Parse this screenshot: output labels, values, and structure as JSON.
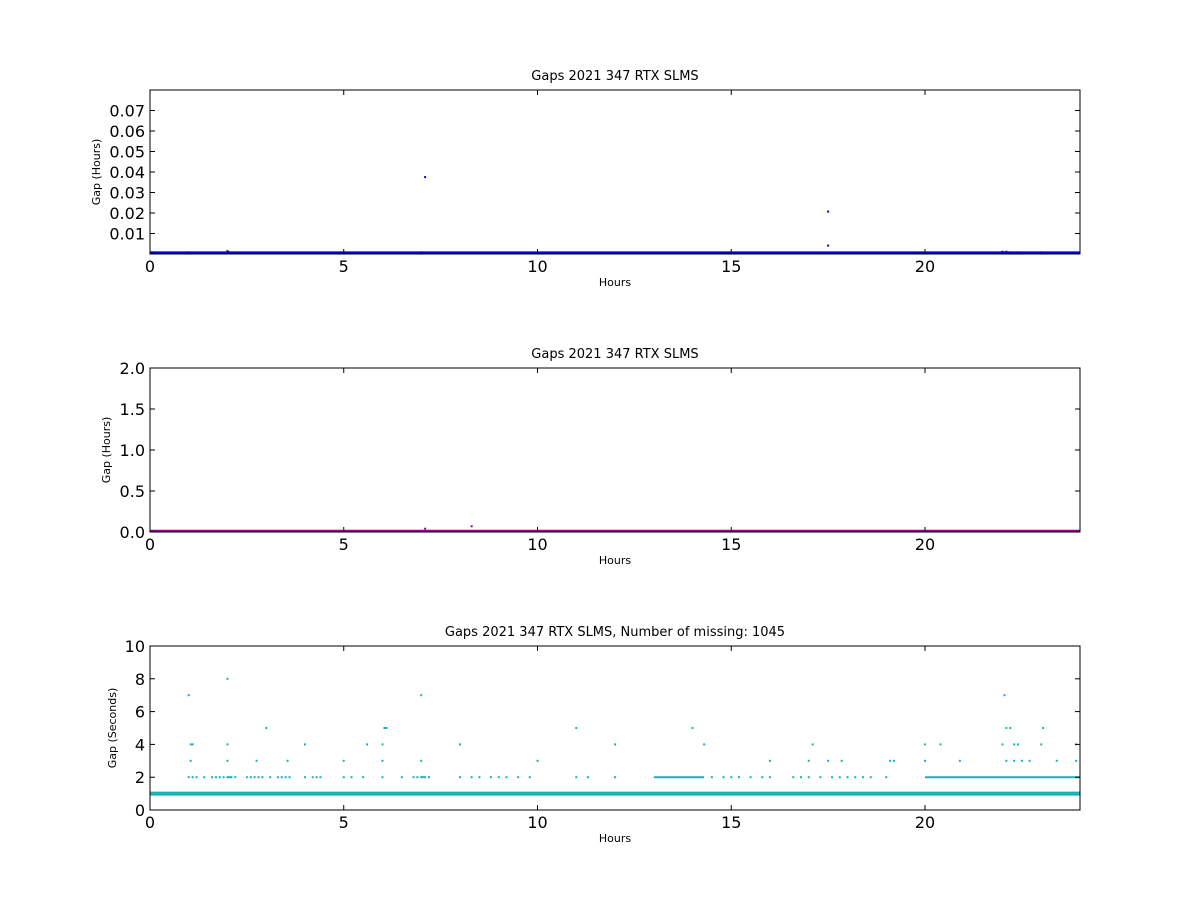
{
  "chart_data": [
    {
      "type": "scatter",
      "title": "Gaps 2021 347 RTX  SLMS",
      "xlabel": "Hours",
      "ylabel": "Gap (Hours)",
      "xlim": [
        0,
        24
      ],
      "ylim": [
        0,
        0.08
      ],
      "xticks": [
        "0",
        "5",
        "10",
        "15",
        "20"
      ],
      "xtick_values": [
        0,
        5,
        10,
        15,
        20
      ],
      "yticks": [
        "0.01",
        "0.02",
        "0.03",
        "0.04",
        "0.05",
        "0.06",
        "0.07"
      ],
      "ytick_values": [
        0.01,
        0.02,
        0.03,
        0.04,
        0.05,
        0.06,
        0.07
      ],
      "color": "#0000cc",
      "baseline": {
        "y": 0.0003,
        "x_start": 0,
        "x_end": 24
      },
      "series": [
        {
          "x": [
            0.05,
            0.1,
            1.0,
            1.05,
            1.1,
            2.0,
            2.05,
            3.0,
            4.0,
            5.0,
            5.5,
            6.0,
            6.1,
            7.0,
            7.1,
            7.2,
            8.0,
            8.3,
            9.0,
            10.0,
            11.0,
            12.0,
            14.0,
            14.3,
            15.0,
            17.0,
            17.5,
            17.5,
            20.0,
            20.4,
            22.0,
            22.1,
            22.2,
            22.4,
            23.0,
            23.9
          ],
          "y": [
            0.0008,
            0.0006,
            0.0008,
            0.0007,
            0.0006,
            0.0014,
            0.0008,
            0.0006,
            0.0006,
            0.0006,
            0.0006,
            0.0006,
            0.0007,
            0.0008,
            0.0375,
            0.0006,
            0.0006,
            0.0005,
            0.0006,
            0.0006,
            0.0006,
            0.0006,
            0.0006,
            0.0006,
            0.0006,
            0.0006,
            0.0207,
            0.0041,
            0.0006,
            0.0006,
            0.0011,
            0.0011,
            0.0008,
            0.0008,
            0.0008,
            0.0006
          ]
        }
      ]
    },
    {
      "type": "scatter",
      "title": "Gaps 2021 347 RTX  SLMS",
      "xlabel": "Hours",
      "ylabel": "Gap (Hours)",
      "xlim": [
        0,
        24
      ],
      "ylim": [
        0,
        2
      ],
      "xticks": [
        "0",
        "5",
        "10",
        "15",
        "20"
      ],
      "xtick_values": [
        0,
        5,
        10,
        15,
        20
      ],
      "yticks": [
        "0.0",
        "0.5",
        "1.0",
        "1.5",
        "2.0"
      ],
      "ytick_values": [
        0,
        0.5,
        1.0,
        1.5,
        2.0
      ],
      "color": "#990099",
      "baseline": {
        "y": 0.003,
        "x_start": 0,
        "x_end": 24
      },
      "series": [
        {
          "x": [
            7.1,
            8.3
          ],
          "y": [
            0.04,
            0.07
          ]
        }
      ]
    },
    {
      "type": "scatter",
      "title": "Gaps 2021 347 RTX  SLMS, Number of missing: 1045",
      "xlabel": "Hours",
      "ylabel": "Gap (Seconds)",
      "xlim": [
        0,
        24
      ],
      "ylim": [
        0,
        10
      ],
      "xticks": [
        "0",
        "5",
        "10",
        "15",
        "20"
      ],
      "xtick_values": [
        0,
        5,
        10,
        15,
        20
      ],
      "yticks": [
        "0",
        "2",
        "4",
        "6",
        "8",
        "10"
      ],
      "ytick_values": [
        0,
        2,
        4,
        6,
        8,
        10
      ],
      "color": "#1ab3b3",
      "baseline": {
        "y": 1,
        "x_start": 0,
        "x_end": 24
      },
      "dense_segments": [
        {
          "y": 2,
          "x_start": 13.0,
          "x_end": 14.3
        },
        {
          "y": 2,
          "x_start": 20.0,
          "x_end": 24.0
        }
      ],
      "series": [
        {
          "x": [
            1.0,
            1.05,
            1.1,
            1.0,
            1.1,
            1.05,
            1.2,
            1.4,
            1.6,
            1.7,
            1.8,
            1.9,
            2.0,
            2.05,
            2.1,
            2.2,
            2.0,
            2.0,
            2.0,
            2.5,
            2.6,
            2.7,
            2.8,
            2.9,
            2.75,
            3.0,
            3.1,
            3.3,
            3.4,
            3.5,
            3.6,
            3.55,
            4.0,
            4.0,
            4.2,
            4.3,
            4.4,
            5.0,
            5.0,
            5.2,
            5.5,
            5.6,
            6.0,
            6.0,
            6.05,
            6.1,
            6.0,
            6.5,
            6.8,
            6.9,
            7.0,
            7.05,
            7.0,
            7.0,
            7.1,
            7.2,
            8.0,
            8.0,
            8.3,
            8.5,
            8.8,
            9.0,
            9.2,
            9.5,
            9.8,
            10.0,
            11.0,
            11.0,
            11.3,
            12.0,
            12.0,
            14.0,
            14.3,
            14.5,
            14.8,
            15.0,
            15.2,
            15.5,
            15.8,
            16.0,
            16.0,
            16.6,
            16.8,
            17.0,
            17.0,
            17.1,
            17.3,
            17.5,
            17.6,
            17.8,
            17.85,
            18.0,
            18.2,
            18.4,
            18.6,
            19.0,
            19.1,
            19.2,
            20.0,
            20.0,
            20.4,
            20.9,
            22.0,
            22.05,
            22.1,
            22.1,
            22.2,
            22.3,
            22.4,
            22.3,
            22.5,
            22.7,
            23.0,
            23.05,
            23.4,
            23.9,
            23.9
          ],
          "y": [
            2,
            4,
            4,
            7,
            2,
            3,
            2,
            2,
            2,
            2,
            2,
            2,
            2,
            2,
            2,
            2,
            3,
            4,
            8,
            2,
            2,
            2,
            2,
            2,
            3,
            5,
            2,
            2,
            2,
            2,
            2,
            3,
            2,
            4,
            2,
            2,
            2,
            2,
            3,
            2,
            2,
            4,
            2,
            3,
            5,
            5,
            4,
            2,
            2,
            2,
            2,
            2,
            3,
            7,
            2,
            2,
            2,
            4,
            2,
            2,
            2,
            2,
            2,
            2,
            2,
            3,
            2,
            5,
            2,
            2,
            4,
            5,
            4,
            2,
            2,
            2,
            2,
            2,
            2,
            2,
            3,
            2,
            2,
            2,
            3,
            4,
            2,
            3,
            2,
            2,
            3,
            2,
            2,
            2,
            2,
            2,
            3,
            3,
            3,
            4,
            4,
            3,
            4,
            7,
            3,
            5,
            5,
            3,
            4,
            4,
            3,
            3,
            4,
            5,
            3,
            3,
            4
          ]
        }
      ]
    }
  ]
}
